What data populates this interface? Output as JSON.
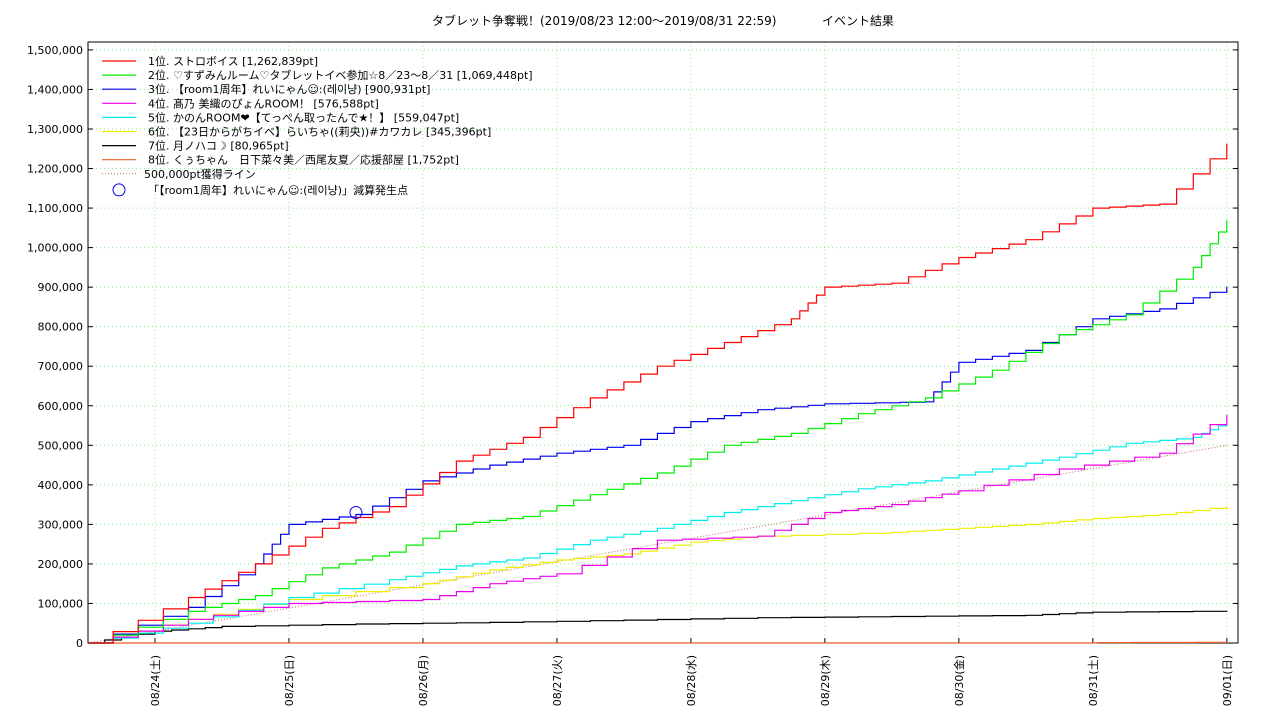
{
  "chart_data": {
    "type": "line",
    "title": "タブレット争奪戦！(2019/08/23 12:00〜2019/08/31 22:59)",
    "subtitle": "イベント結果",
    "x_unit": "day_offset_from_2019-08-23_00:00",
    "xlim": [
      "2019-08-23 12:00",
      "2019-09-01 02:00"
    ],
    "ylim": [
      0,
      1520000
    ],
    "ytick_values": [
      0,
      100000,
      200000,
      300000,
      400000,
      500000,
      600000,
      700000,
      800000,
      900000,
      1000000,
      1100000,
      1200000,
      1300000,
      1400000,
      1500000
    ],
    "ytick_labels": [
      "0",
      "100,000",
      "200,000",
      "300,000",
      "400,000",
      "500,000",
      "600,000",
      "700,000",
      "800,000",
      "900,000",
      "1,000,000",
      "1,100,000",
      "1,200,000",
      "1,300,000",
      "1,400,000",
      "1,500,000"
    ],
    "xtick_dates": [
      "2019-08-24",
      "2019-08-25",
      "2019-08-26",
      "2019-08-27",
      "2019-08-28",
      "2019-08-29",
      "2019-08-30",
      "2019-08-31",
      "2019-09-01"
    ],
    "xtick_labels": [
      "08/24(土)",
      "08/25(日)",
      "08/26(月)",
      "08/27(火)",
      "08/28(水)",
      "08/29(木)",
      "08/30(金)",
      "08/31(土)",
      "09/01(日)"
    ],
    "grid": true,
    "legend_position": "top-left",
    "series": [
      {
        "name": "1位. ストロボイス [1,262,839pt]",
        "color": "#ff0000",
        "points": [
          [
            "2019-08-23 12:00",
            0
          ],
          [
            "2019-08-24 06:00",
            115000
          ],
          [
            "2019-08-24 18:00",
            200000
          ],
          [
            "2019-08-25 06:00",
            290000
          ],
          [
            "2019-08-25 18:00",
            345000
          ],
          [
            "2019-08-26 06:00",
            460000
          ],
          [
            "2019-08-26 18:00",
            520000
          ],
          [
            "2019-08-27 06:00",
            620000
          ],
          [
            "2019-08-27 18:00",
            700000
          ],
          [
            "2019-08-28 06:00",
            760000
          ],
          [
            "2019-08-28 18:00",
            820000
          ],
          [
            "2019-08-29 00:00",
            900000
          ],
          [
            "2019-08-29 12:00",
            910000
          ],
          [
            "2019-08-30 00:00",
            975000
          ],
          [
            "2019-08-30 12:00",
            1020000
          ],
          [
            "2019-08-31 00:00",
            1100000
          ],
          [
            "2019-08-31 12:00",
            1110000
          ],
          [
            "2019-09-01 00:00",
            1262839
          ]
        ]
      },
      {
        "name": "2位. ♡すずみんルーム♡タブレットイベ参加☆8／23〜8／31 [1,069,448pt]",
        "color": "#00ee00",
        "points": [
          [
            "2019-08-23 12:00",
            0
          ],
          [
            "2019-08-24 06:00",
            80000
          ],
          [
            "2019-08-24 18:00",
            120000
          ],
          [
            "2019-08-25 06:00",
            190000
          ],
          [
            "2019-08-25 18:00",
            230000
          ],
          [
            "2019-08-26 06:00",
            300000
          ],
          [
            "2019-08-26 18:00",
            320000
          ],
          [
            "2019-08-27 06:00",
            375000
          ],
          [
            "2019-08-27 18:00",
            430000
          ],
          [
            "2019-08-28 06:00",
            500000
          ],
          [
            "2019-08-28 18:00",
            530000
          ],
          [
            "2019-08-29 06:00",
            580000
          ],
          [
            "2019-08-29 18:00",
            620000
          ],
          [
            "2019-08-30 06:00",
            690000
          ],
          [
            "2019-08-30 18:00",
            780000
          ],
          [
            "2019-08-31 06:00",
            830000
          ],
          [
            "2019-08-31 18:00",
            950000
          ],
          [
            "2019-09-01 00:00",
            1069448
          ]
        ]
      },
      {
        "name": "3位. 【room1周年】れいにゃん☺︎:(레이냥) [900,931pt]",
        "color": "#0000ee",
        "points": [
          [
            "2019-08-23 12:00",
            0
          ],
          [
            "2019-08-24 06:00",
            90000
          ],
          [
            "2019-08-24 18:00",
            200000
          ],
          [
            "2019-08-25 00:00",
            300000
          ],
          [
            "2019-08-25 12:00",
            325000
          ],
          [
            "2019-08-26 00:00",
            410000
          ],
          [
            "2019-08-26 12:00",
            450000
          ],
          [
            "2019-08-27 00:00",
            480000
          ],
          [
            "2019-08-27 12:00",
            500000
          ],
          [
            "2019-08-28 00:00",
            560000
          ],
          [
            "2019-08-28 12:00",
            590000
          ],
          [
            "2019-08-29 00:00",
            605000
          ],
          [
            "2019-08-29 18:00",
            610000
          ],
          [
            "2019-08-30 00:00",
            710000
          ],
          [
            "2019-08-30 12:00",
            740000
          ],
          [
            "2019-08-31 00:00",
            820000
          ],
          [
            "2019-08-31 12:00",
            845000
          ],
          [
            "2019-09-01 00:00",
            900931
          ]
        ]
      },
      {
        "name": "4位. 髙乃 美織のぴょんROOM！ [576,588pt]",
        "color": "#ee00ee",
        "points": [
          [
            "2019-08-23 12:00",
            0
          ],
          [
            "2019-08-24 06:00",
            60000
          ],
          [
            "2019-08-25 00:00",
            100000
          ],
          [
            "2019-08-26 00:00",
            110000
          ],
          [
            "2019-08-26 12:00",
            150000
          ],
          [
            "2019-08-27 00:00",
            175000
          ],
          [
            "2019-08-27 18:00",
            260000
          ],
          [
            "2019-08-28 12:00",
            270000
          ],
          [
            "2019-08-29 00:00",
            330000
          ],
          [
            "2019-08-29 12:00",
            350000
          ],
          [
            "2019-08-30 00:00",
            385000
          ],
          [
            "2019-08-30 18:00",
            440000
          ],
          [
            "2019-08-31 12:00",
            480000
          ],
          [
            "2019-09-01 00:00",
            576588
          ]
        ]
      },
      {
        "name": "5位. かのんROOM❤【てっぺん取ったんで★！】 [559,047pt]",
        "color": "#00eeee",
        "points": [
          [
            "2019-08-23 12:00",
            0
          ],
          [
            "2019-08-24 06:00",
            50000
          ],
          [
            "2019-08-25 00:00",
            115000
          ],
          [
            "2019-08-25 18:00",
            160000
          ],
          [
            "2019-08-26 06:00",
            195000
          ],
          [
            "2019-08-26 18:00",
            215000
          ],
          [
            "2019-08-27 06:00",
            260000
          ],
          [
            "2019-08-27 18:00",
            290000
          ],
          [
            "2019-08-28 06:00",
            330000
          ],
          [
            "2019-08-28 18:00",
            360000
          ],
          [
            "2019-08-29 06:00",
            390000
          ],
          [
            "2019-08-29 18:00",
            410000
          ],
          [
            "2019-08-30 06:00",
            440000
          ],
          [
            "2019-08-30 18:00",
            470000
          ],
          [
            "2019-08-31 06:00",
            505000
          ],
          [
            "2019-08-31 18:00",
            520000
          ],
          [
            "2019-09-01 00:00",
            559047
          ]
        ]
      },
      {
        "name": "6位. 【23日からがちイベ】らいちゃ((莉央))#カワカレ [345,396pt]",
        "color": "#eeee00",
        "points": [
          [
            "2019-08-23 12:00",
            0
          ],
          [
            "2019-08-24 06:00",
            60000
          ],
          [
            "2019-08-25 00:00",
            110000
          ],
          [
            "2019-08-26 00:00",
            150000
          ],
          [
            "2019-08-26 12:00",
            185000
          ],
          [
            "2019-08-27 00:00",
            210000
          ],
          [
            "2019-08-27 12:00",
            225000
          ],
          [
            "2019-08-28 00:00",
            255000
          ],
          [
            "2019-08-28 12:00",
            270000
          ],
          [
            "2019-08-29 12:00",
            280000
          ],
          [
            "2019-08-30 00:00",
            290000
          ],
          [
            "2019-08-30 12:00",
            300000
          ],
          [
            "2019-08-31 00:00",
            315000
          ],
          [
            "2019-08-31 12:00",
            325000
          ],
          [
            "2019-09-01 00:00",
            345396
          ]
        ]
      },
      {
        "name": "7位. 月ノハコ☽ [80,965pt]",
        "color": "#000000",
        "points": [
          [
            "2019-08-23 12:00",
            0
          ],
          [
            "2019-08-24 00:00",
            30000
          ],
          [
            "2019-08-24 12:00",
            42000
          ],
          [
            "2019-08-25 12:00",
            48000
          ],
          [
            "2019-08-26 12:00",
            52000
          ],
          [
            "2019-08-27 12:00",
            58000
          ],
          [
            "2019-08-28 12:00",
            64000
          ],
          [
            "2019-08-29 12:00",
            67000
          ],
          [
            "2019-08-30 12:00",
            70000
          ],
          [
            "2019-08-31 00:00",
            78000
          ],
          [
            "2019-09-01 00:00",
            80965
          ]
        ]
      },
      {
        "name": "8位. くぅちゃん　日下菜々美／西尾友夏／応援部屋 [1,752pt]",
        "color": "#e86020",
        "points": [
          [
            "2019-08-23 12:00",
            0
          ],
          [
            "2019-08-31 00:00",
            0
          ],
          [
            "2019-08-31 01:00",
            1000
          ],
          [
            "2019-09-01 00:00",
            1752
          ]
        ]
      }
    ],
    "reference_line": {
      "name": "500,000pt獲得ライン",
      "color": "#cc6666",
      "style": "dotted",
      "points": [
        [
          "2019-08-23 12:00",
          0
        ],
        [
          "2019-09-01 00:00",
          500000
        ]
      ]
    },
    "marker": {
      "name": "「【room1周年】れいにゃん☺︎:(레이냥)」減算発生点",
      "color": "#0000ee",
      "x": "2019-08-25 12:00",
      "y": 330000
    }
  }
}
